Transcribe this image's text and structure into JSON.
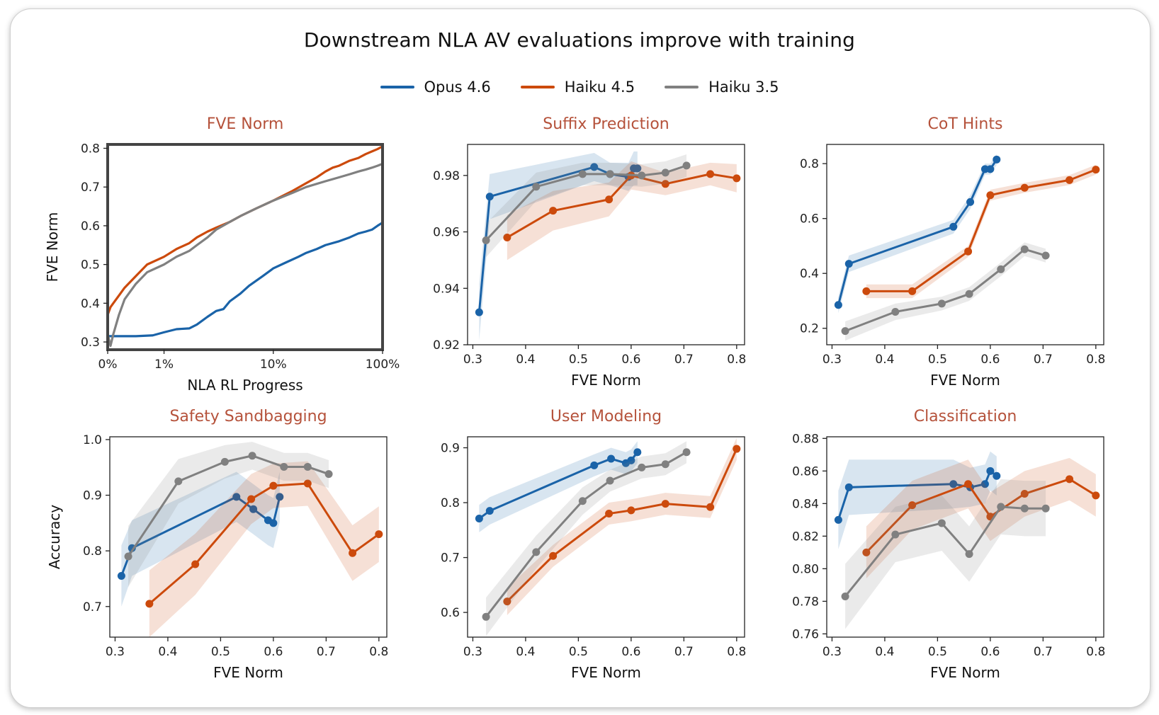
{
  "figure": {
    "title": "Downstream NLA AV evaluations improve with training",
    "legend": [
      {
        "name": "Opus 4.6",
        "color": "#1a63a8"
      },
      {
        "name": "Haiku 4.5",
        "color": "#cc4a0c"
      },
      {
        "name": "Haiku 3.5",
        "color": "#808080"
      }
    ],
    "panel_title_color": "#b5523b"
  },
  "chart_data": [
    {
      "id": "fve",
      "type": "line",
      "title": "FVE Norm",
      "xlabel": "NLA RL Progress",
      "ylabel": "FVE Norm",
      "x_scale": "symlog-percent",
      "xlim": [
        0,
        100
      ],
      "ylim": [
        0.28,
        0.81
      ],
      "xticks": [
        0,
        1,
        10,
        100
      ],
      "xtick_labels": [
        "0%",
        "1%",
        "10%",
        "100%"
      ],
      "yticks": [
        0.3,
        0.4,
        0.5,
        0.6,
        0.7,
        0.8
      ],
      "ytick_labels": [
        "0.3",
        "0.4",
        "0.5",
        "0.6",
        "0.7",
        "0.8"
      ],
      "series": [
        {
          "name": "Opus 4.6",
          "color": "#1a63a8",
          "x": [
            0,
            0.1,
            0.3,
            0.5,
            0.8,
            1.0,
            1.3,
            1.7,
            2.0,
            2.5,
            3.0,
            3.5,
            4.0,
            5.0,
            6.0,
            8.0,
            10,
            13,
            17,
            20,
            25,
            30,
            40,
            50,
            60,
            70,
            80,
            90,
            100
          ],
          "y": [
            0.315,
            0.315,
            0.315,
            0.315,
            0.317,
            0.325,
            0.333,
            0.335,
            0.345,
            0.365,
            0.38,
            0.385,
            0.405,
            0.425,
            0.445,
            0.47,
            0.49,
            0.505,
            0.52,
            0.53,
            0.54,
            0.55,
            0.56,
            0.57,
            0.58,
            0.585,
            0.59,
            0.6,
            0.608
          ]
        },
        {
          "name": "Haiku 4.5",
          "color": "#cc4a0c",
          "x": [
            0,
            0.05,
            0.1,
            0.2,
            0.3,
            0.5,
            0.7,
            1.0,
            1.3,
            1.7,
            2.0,
            2.5,
            3.0,
            4.0,
            5.0,
            7.0,
            10,
            15,
            20,
            25,
            30,
            35,
            40,
            45,
            50,
            60,
            70,
            80,
            90,
            100
          ],
          "y": [
            0.37,
            0.39,
            0.4,
            0.42,
            0.44,
            0.47,
            0.5,
            0.52,
            0.54,
            0.555,
            0.57,
            0.585,
            0.595,
            0.61,
            0.625,
            0.645,
            0.665,
            0.69,
            0.71,
            0.725,
            0.74,
            0.75,
            0.755,
            0.762,
            0.768,
            0.775,
            0.785,
            0.792,
            0.798,
            0.805
          ]
        },
        {
          "name": "Haiku 3.5",
          "color": "#808080",
          "x": [
            0,
            0.05,
            0.1,
            0.2,
            0.3,
            0.5,
            0.7,
            1.0,
            1.3,
            1.7,
            2.0,
            2.5,
            3.0,
            4.0,
            5.0,
            7.0,
            10,
            15,
            20,
            30,
            40,
            50,
            60,
            70,
            80,
            90,
            100
          ],
          "y": [
            0.32,
            0.29,
            0.32,
            0.37,
            0.41,
            0.45,
            0.48,
            0.5,
            0.52,
            0.535,
            0.55,
            0.57,
            0.59,
            0.61,
            0.625,
            0.645,
            0.665,
            0.685,
            0.7,
            0.715,
            0.725,
            0.733,
            0.74,
            0.745,
            0.75,
            0.755,
            0.76
          ]
        }
      ]
    },
    {
      "id": "suffix",
      "type": "line",
      "title": "Suffix Prediction",
      "xlabel": "FVE Norm",
      "ylabel": "",
      "xlim": [
        0.29,
        0.815
      ],
      "ylim": [
        0.92,
        0.991
      ],
      "xticks": [
        0.3,
        0.4,
        0.5,
        0.6,
        0.7,
        0.8
      ],
      "xtick_labels": [
        "0.3",
        "0.4",
        "0.5",
        "0.6",
        "0.7",
        "0.8"
      ],
      "yticks": [
        0.92,
        0.94,
        0.96,
        0.98
      ],
      "ytick_labels": [
        "0.92",
        "0.94",
        "0.96",
        "0.98"
      ],
      "series": [
        {
          "name": "Opus 4.6",
          "color": "#1a63a8",
          "x": [
            0.312,
            0.332,
            0.53,
            0.56,
            0.595,
            0.605,
            0.612
          ],
          "y": [
            0.9315,
            0.9725,
            0.983,
            0.9805,
            0.9795,
            0.9825,
            0.9825
          ],
          "band": [
            0.01,
            0.008,
            0.005,
            0.004,
            0.005,
            0.006,
            0.006
          ]
        },
        {
          "name": "Haiku 4.5",
          "color": "#cc4a0c",
          "x": [
            0.365,
            0.452,
            0.558,
            0.6,
            0.665,
            0.75,
            0.8
          ],
          "y": [
            0.958,
            0.9675,
            0.9715,
            0.98,
            0.977,
            0.9805,
            0.979
          ],
          "band": [
            0.008,
            0.007,
            0.006,
            0.005,
            0.004,
            0.004,
            0.005
          ]
        },
        {
          "name": "Haiku 3.5",
          "color": "#808080",
          "x": [
            0.325,
            0.42,
            0.508,
            0.56,
            0.62,
            0.665,
            0.705
          ],
          "y": [
            0.957,
            0.976,
            0.9805,
            0.9805,
            0.98,
            0.981,
            0.9835
          ],
          "band": [
            0.006,
            0.005,
            0.004,
            0.004,
            0.004,
            0.004,
            0.004
          ]
        }
      ]
    },
    {
      "id": "cot",
      "type": "line",
      "title": "CoT Hints",
      "xlabel": "FVE Norm",
      "ylabel": "",
      "xlim": [
        0.29,
        0.815
      ],
      "ylim": [
        0.14,
        0.87
      ],
      "xticks": [
        0.3,
        0.4,
        0.5,
        0.6,
        0.7,
        0.8
      ],
      "xtick_labels": [
        "0.3",
        "0.4",
        "0.5",
        "0.6",
        "0.7",
        "0.8"
      ],
      "yticks": [
        0.2,
        0.4,
        0.6,
        0.8
      ],
      "ytick_labels": [
        "0.2",
        "0.4",
        "0.6",
        "0.8"
      ],
      "series": [
        {
          "name": "Opus 4.6",
          "color": "#1a63a8",
          "x": [
            0.312,
            0.332,
            0.53,
            0.562,
            0.59,
            0.6,
            0.612
          ],
          "y": [
            0.285,
            0.435,
            0.57,
            0.66,
            0.78,
            0.78,
            0.815
          ],
          "band": [
            0.03,
            0.03,
            0.025,
            0.025,
            0.02,
            0.02,
            0.02
          ]
        },
        {
          "name": "Haiku 4.5",
          "color": "#cc4a0c",
          "x": [
            0.365,
            0.452,
            0.558,
            0.6,
            0.665,
            0.75,
            0.8
          ],
          "y": [
            0.335,
            0.335,
            0.48,
            0.685,
            0.712,
            0.74,
            0.778
          ],
          "band": [
            0.025,
            0.025,
            0.02,
            0.02,
            0.018,
            0.018,
            0.018
          ]
        },
        {
          "name": "Haiku 3.5",
          "color": "#808080",
          "x": [
            0.325,
            0.42,
            0.508,
            0.56,
            0.62,
            0.665,
            0.705
          ],
          "y": [
            0.19,
            0.26,
            0.29,
            0.325,
            0.415,
            0.488,
            0.465
          ],
          "band": [
            0.035,
            0.03,
            0.025,
            0.025,
            0.025,
            0.025,
            0.025
          ]
        }
      ]
    },
    {
      "id": "safety",
      "type": "line",
      "title": "Safety Sandbagging",
      "xlabel": "FVE Norm",
      "ylabel": "Accuracy",
      "xlim": [
        0.29,
        0.815
      ],
      "ylim": [
        0.645,
        1.005
      ],
      "xticks": [
        0.3,
        0.4,
        0.5,
        0.6,
        0.7,
        0.8
      ],
      "xtick_labels": [
        "0.3",
        "0.4",
        "0.5",
        "0.6",
        "0.7",
        "0.8"
      ],
      "yticks": [
        0.7,
        0.8,
        0.9,
        1.0
      ],
      "ytick_labels": [
        "0.7",
        "0.8",
        "0.9",
        "1.0"
      ],
      "series": [
        {
          "name": "Opus 4.6",
          "color": "#1a63a8",
          "x": [
            0.312,
            0.332,
            0.53,
            0.562,
            0.59,
            0.6,
            0.612
          ],
          "y": [
            0.755,
            0.805,
            0.897,
            0.875,
            0.855,
            0.85,
            0.897
          ],
          "band": [
            0.055,
            0.05,
            0.045,
            0.045,
            0.045,
            0.045,
            0.045
          ]
        },
        {
          "name": "Haiku 4.5",
          "color": "#cc4a0c",
          "x": [
            0.365,
            0.452,
            0.558,
            0.6,
            0.665,
            0.75,
            0.8
          ],
          "y": [
            0.705,
            0.776,
            0.893,
            0.917,
            0.921,
            0.796,
            0.83
          ],
          "band": [
            0.06,
            0.055,
            0.045,
            0.04,
            0.04,
            0.05,
            0.05
          ]
        },
        {
          "name": "Haiku 3.5",
          "color": "#808080",
          "x": [
            0.325,
            0.42,
            0.508,
            0.56,
            0.62,
            0.665,
            0.705
          ],
          "y": [
            0.79,
            0.925,
            0.96,
            0.971,
            0.951,
            0.951,
            0.938
          ],
          "band": [
            0.055,
            0.04,
            0.03,
            0.025,
            0.025,
            0.025,
            0.025
          ]
        }
      ]
    },
    {
      "id": "user",
      "type": "line",
      "title": "User Modeling",
      "xlabel": "FVE Norm",
      "ylabel": "",
      "xlim": [
        0.29,
        0.815
      ],
      "ylim": [
        0.555,
        0.92
      ],
      "xticks": [
        0.3,
        0.4,
        0.5,
        0.6,
        0.7,
        0.8
      ],
      "xtick_labels": [
        "0.3",
        "0.4",
        "0.5",
        "0.6",
        "0.7",
        "0.8"
      ],
      "yticks": [
        0.6,
        0.7,
        0.8,
        0.9
      ],
      "ytick_labels": [
        "0.6",
        "0.7",
        "0.8",
        "0.9"
      ],
      "series": [
        {
          "name": "Opus 4.6",
          "color": "#1a63a8",
          "x": [
            0.312,
            0.332,
            0.53,
            0.562,
            0.59,
            0.6,
            0.612
          ],
          "y": [
            0.771,
            0.785,
            0.868,
            0.88,
            0.872,
            0.877,
            0.892
          ],
          "band": [
            0.025,
            0.025,
            0.02,
            0.02,
            0.02,
            0.02,
            0.02
          ]
        },
        {
          "name": "Haiku 4.5",
          "color": "#cc4a0c",
          "x": [
            0.365,
            0.452,
            0.558,
            0.6,
            0.665,
            0.75,
            0.8
          ],
          "y": [
            0.62,
            0.703,
            0.78,
            0.786,
            0.798,
            0.792,
            0.898
          ],
          "band": [
            0.025,
            0.02,
            0.02,
            0.02,
            0.02,
            0.02,
            0.02
          ]
        },
        {
          "name": "Haiku 3.5",
          "color": "#808080",
          "x": [
            0.325,
            0.42,
            0.508,
            0.56,
            0.62,
            0.665,
            0.705
          ],
          "y": [
            0.592,
            0.71,
            0.803,
            0.84,
            0.864,
            0.87,
            0.892
          ],
          "band": [
            0.035,
            0.03,
            0.025,
            0.02,
            0.02,
            0.02,
            0.02
          ]
        }
      ]
    },
    {
      "id": "class",
      "type": "line",
      "title": "Classification",
      "xlabel": "FVE Norm",
      "ylabel": "",
      "xlim": [
        0.29,
        0.815
      ],
      "ylim": [
        0.758,
        0.881
      ],
      "xticks": [
        0.3,
        0.4,
        0.5,
        0.6,
        0.7,
        0.8
      ],
      "xtick_labels": [
        "0.3",
        "0.4",
        "0.5",
        "0.6",
        "0.7",
        "0.8"
      ],
      "yticks": [
        0.76,
        0.78,
        0.8,
        0.82,
        0.84,
        0.86,
        0.88
      ],
      "ytick_labels": [
        "0.76",
        "0.78",
        "0.80",
        "0.82",
        "0.84",
        "0.86",
        "0.88"
      ],
      "series": [
        {
          "name": "Opus 4.6",
          "color": "#1a63a8",
          "x": [
            0.312,
            0.332,
            0.53,
            0.562,
            0.59,
            0.6,
            0.612
          ],
          "y": [
            0.83,
            0.85,
            0.852,
            0.85,
            0.852,
            0.86,
            0.857
          ],
          "band": [
            0.018,
            0.017,
            0.015,
            0.012,
            0.012,
            0.012,
            0.012
          ]
        },
        {
          "name": "Haiku 4.5",
          "color": "#cc4a0c",
          "x": [
            0.365,
            0.452,
            0.558,
            0.6,
            0.665,
            0.75,
            0.8
          ],
          "y": [
            0.81,
            0.839,
            0.852,
            0.832,
            0.846,
            0.855,
            0.845
          ],
          "band": [
            0.016,
            0.015,
            0.015,
            0.015,
            0.014,
            0.013,
            0.013
          ]
        },
        {
          "name": "Haiku 3.5",
          "color": "#808080",
          "x": [
            0.325,
            0.42,
            0.508,
            0.56,
            0.62,
            0.665,
            0.705
          ],
          "y": [
            0.783,
            0.821,
            0.828,
            0.809,
            0.838,
            0.837,
            0.837
          ],
          "band": [
            0.02,
            0.017,
            0.017,
            0.017,
            0.017,
            0.017,
            0.017
          ]
        }
      ]
    }
  ]
}
